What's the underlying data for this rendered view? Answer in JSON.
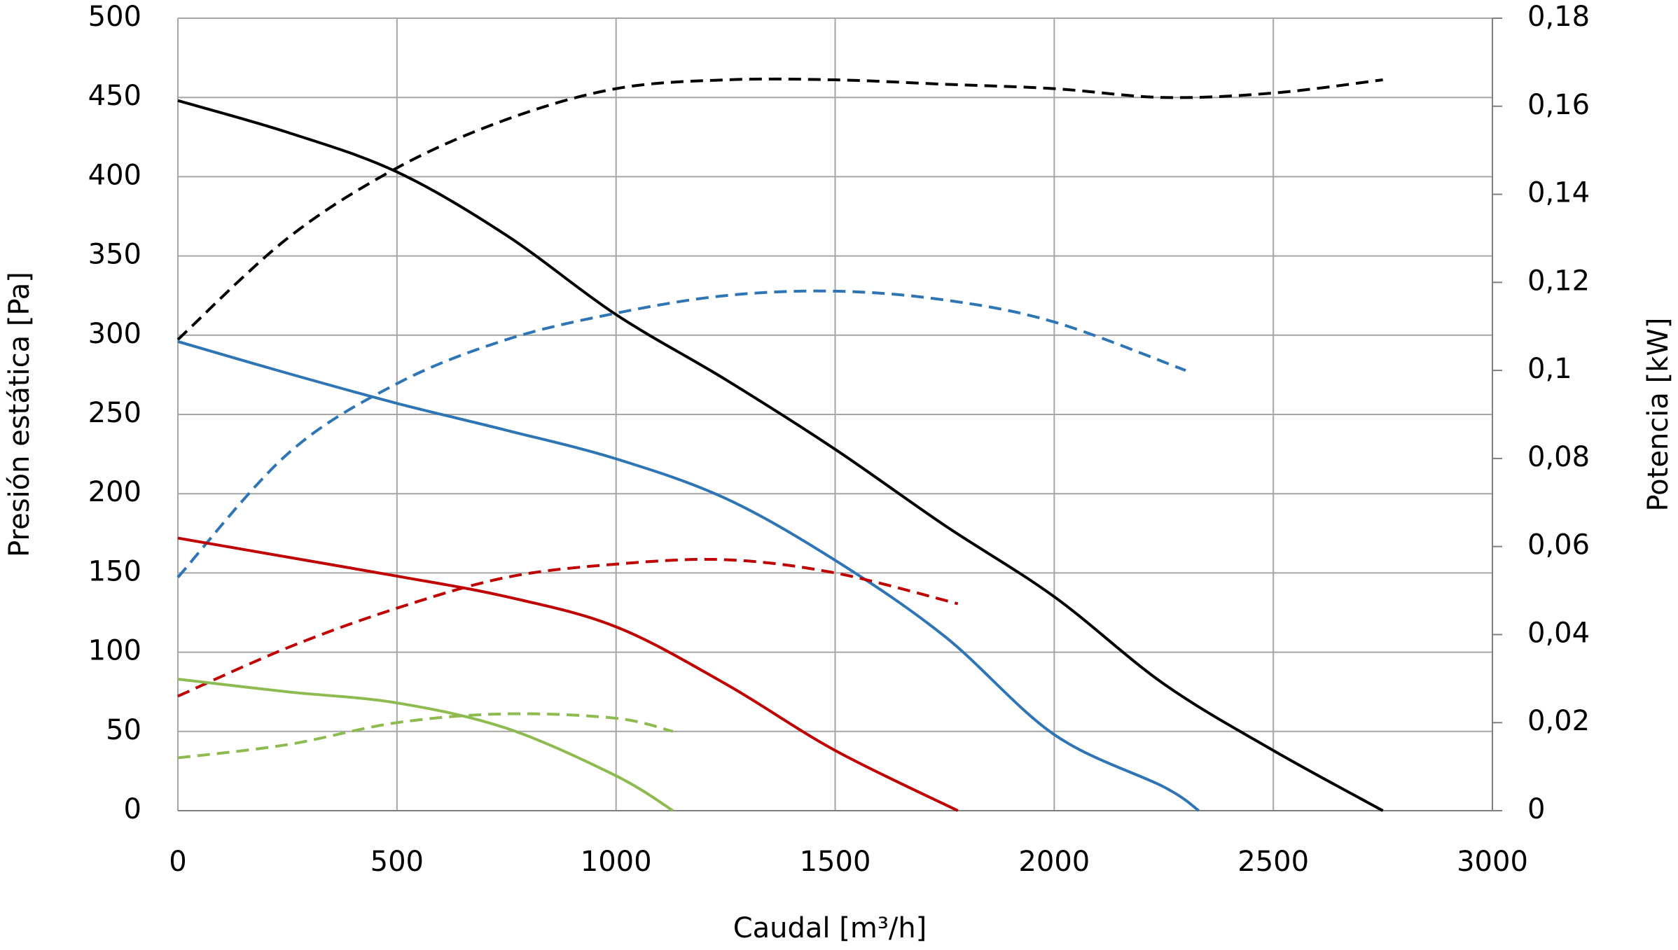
{
  "chart_data": {
    "type": "line",
    "xlabel": "Caudal [m³/h]",
    "ylabel": "Presión estática [Pa]",
    "y2label": "Potencia [kW]",
    "xlim": [
      0,
      3000
    ],
    "xticks": [
      0,
      500,
      1000,
      1500,
      2000,
      2500,
      3000
    ],
    "ylim": [
      0,
      500
    ],
    "yticks": [
      0,
      50,
      100,
      150,
      200,
      250,
      300,
      350,
      400,
      450,
      500
    ],
    "y2lim": [
      0,
      0.18
    ],
    "y2ticks": [
      0,
      {
        "value": 0.02,
        "label": "0,02"
      },
      {
        "value": 0.04,
        "label": "0,04"
      },
      {
        "value": 0.06,
        "label": "0,06"
      },
      {
        "value": 0.08,
        "label": "0,08"
      },
      {
        "value": 0.1,
        "label": "0,1"
      },
      {
        "value": 0.12,
        "label": "0,12"
      },
      {
        "value": 0.14,
        "label": "0,14"
      },
      {
        "value": 0.16,
        "label": "0,16"
      },
      {
        "value": 0.18,
        "label": "0,18"
      }
    ],
    "grid": true,
    "series": [
      {
        "color": "#000000",
        "style": "solid",
        "x": [
          0,
          250,
          500,
          750,
          1000,
          1250,
          1500,
          1750,
          2000,
          2250,
          2500,
          2750
        ],
        "values": [
          448,
          428,
          403,
          363,
          313,
          272,
          228,
          180,
          135,
          80,
          38,
          0
        ]
      },
      {
        "color": "#000000",
        "style": "dashed",
        "axis": "y2",
        "x": [
          0,
          250,
          500,
          750,
          1000,
          1250,
          1500,
          1750,
          2000,
          2250,
          2500,
          2750
        ],
        "values": [
          0.107,
          0.13,
          0.146,
          0.157,
          0.164,
          0.166,
          0.166,
          0.165,
          0.164,
          0.162,
          0.163,
          0.166
        ]
      },
      {
        "color": "#2e75b6",
        "style": "solid",
        "x": [
          0,
          250,
          500,
          750,
          1000,
          1250,
          1500,
          1750,
          2000,
          2250,
          2330
        ],
        "values": [
          296,
          276,
          257,
          240,
          222,
          197,
          158,
          110,
          48,
          15,
          0
        ]
      },
      {
        "color": "#2e75b6",
        "style": "dashed",
        "axis": "y2",
        "x": [
          0,
          250,
          500,
          750,
          1000,
          1250,
          1500,
          1750,
          2000,
          2300
        ],
        "values": [
          0.053,
          0.081,
          0.097,
          0.107,
          0.113,
          0.117,
          0.118,
          0.116,
          0.111,
          0.1
        ]
      },
      {
        "color": "#c00000",
        "style": "solid",
        "x": [
          0,
          250,
          500,
          750,
          1000,
          1250,
          1500,
          1780
        ],
        "values": [
          172,
          160,
          148,
          135,
          116,
          80,
          38,
          0
        ]
      },
      {
        "color": "#c00000",
        "style": "dashed",
        "axis": "y2",
        "x": [
          0,
          250,
          500,
          750,
          1000,
          1250,
          1500,
          1780
        ],
        "values": [
          0.026,
          0.037,
          0.046,
          0.053,
          0.056,
          0.057,
          0.054,
          0.047
        ]
      },
      {
        "color": "#8dbb4f",
        "style": "solid",
        "x": [
          0,
          250,
          500,
          750,
          1000,
          1130
        ],
        "values": [
          83,
          75,
          68,
          52,
          22,
          0
        ]
      },
      {
        "color": "#8dbb4f",
        "style": "dashed",
        "axis": "y2",
        "x": [
          0,
          250,
          500,
          750,
          1000,
          1130
        ],
        "values": [
          0.012,
          0.015,
          0.02,
          0.022,
          0.021,
          0.018
        ]
      }
    ]
  }
}
